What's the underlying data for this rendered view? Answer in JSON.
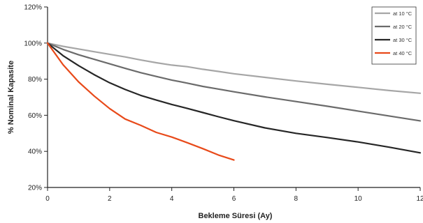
{
  "chart_data": {
    "type": "line",
    "title": "",
    "xlabel": "Bekleme Süresi (Ay)",
    "ylabel": "% Nominal Kapasite",
    "xlim": [
      0,
      12
    ],
    "ylim": [
      20,
      120
    ],
    "x_ticks": [
      0,
      2,
      4,
      6,
      8,
      10,
      12
    ],
    "x_tick_labels": [
      "0",
      "2",
      "4",
      "6",
      "8",
      "10",
      "12"
    ],
    "y_ticks": [
      20,
      40,
      60,
      80,
      100,
      120
    ],
    "y_tick_labels": [
      "20%",
      "40%",
      "60%",
      "80%",
      "100%",
      "120%"
    ],
    "grid": false,
    "legend_position": "top-right",
    "series": [
      {
        "name": "at 10 °C",
        "color": "#a6a6a6",
        "points": [
          [
            0,
            100
          ],
          [
            0.5,
            98.2
          ],
          [
            1,
            96.7
          ],
          [
            1.5,
            95.2
          ],
          [
            2,
            93.8
          ],
          [
            2.5,
            92.3
          ],
          [
            3,
            90.6
          ],
          [
            3.5,
            89.1
          ],
          [
            4,
            87.8
          ],
          [
            4.5,
            86.9
          ],
          [
            5,
            85.5
          ],
          [
            5.5,
            84.3
          ],
          [
            6,
            83.0
          ],
          [
            7,
            81.0
          ],
          [
            8,
            79.0
          ],
          [
            9,
            77.2
          ],
          [
            10,
            75.5
          ],
          [
            11,
            73.7
          ],
          [
            12,
            72.2
          ]
        ]
      },
      {
        "name": "at 20 °C",
        "color": "#6b6b6b",
        "points": [
          [
            0,
            100
          ],
          [
            0.5,
            96.5
          ],
          [
            1,
            93.5
          ],
          [
            1.5,
            91
          ],
          [
            2,
            88.5
          ],
          [
            2.5,
            86
          ],
          [
            3,
            83.6
          ],
          [
            3.5,
            81.5
          ],
          [
            4,
            79.5
          ],
          [
            4.5,
            77.8
          ],
          [
            5,
            76
          ],
          [
            5.5,
            74.5
          ],
          [
            6,
            73
          ],
          [
            7,
            70.2
          ],
          [
            8,
            67.6
          ],
          [
            9,
            65
          ],
          [
            10,
            62.3
          ],
          [
            11,
            59.6
          ],
          [
            12,
            56.9
          ]
        ]
      },
      {
        "name": "at 30 °C",
        "color": "#262626",
        "points": [
          [
            0,
            100
          ],
          [
            0.5,
            93
          ],
          [
            1,
            87.5
          ],
          [
            1.5,
            82.5
          ],
          [
            2,
            78
          ],
          [
            2.5,
            74.3
          ],
          [
            3,
            71
          ],
          [
            3.5,
            68.4
          ],
          [
            4,
            66
          ],
          [
            4.5,
            63.8
          ],
          [
            5,
            61.5
          ],
          [
            5.5,
            59.2
          ],
          [
            6,
            57
          ],
          [
            7,
            53
          ],
          [
            8,
            50
          ],
          [
            9,
            47.7
          ],
          [
            10,
            45.2
          ],
          [
            11,
            42.3
          ],
          [
            12,
            39.2
          ]
        ]
      },
      {
        "name": "at 40 °C",
        "color": "#e84a1a",
        "points": [
          [
            0,
            100
          ],
          [
            0.5,
            88
          ],
          [
            1,
            78.5
          ],
          [
            1.5,
            70.7
          ],
          [
            2,
            63.7
          ],
          [
            2.5,
            57.9
          ],
          [
            3,
            54.4
          ],
          [
            3.5,
            50.5
          ],
          [
            4,
            47.9
          ],
          [
            4.5,
            44.8
          ],
          [
            5,
            41.5
          ],
          [
            5.5,
            38
          ],
          [
            6,
            35.2
          ]
        ]
      }
    ]
  }
}
